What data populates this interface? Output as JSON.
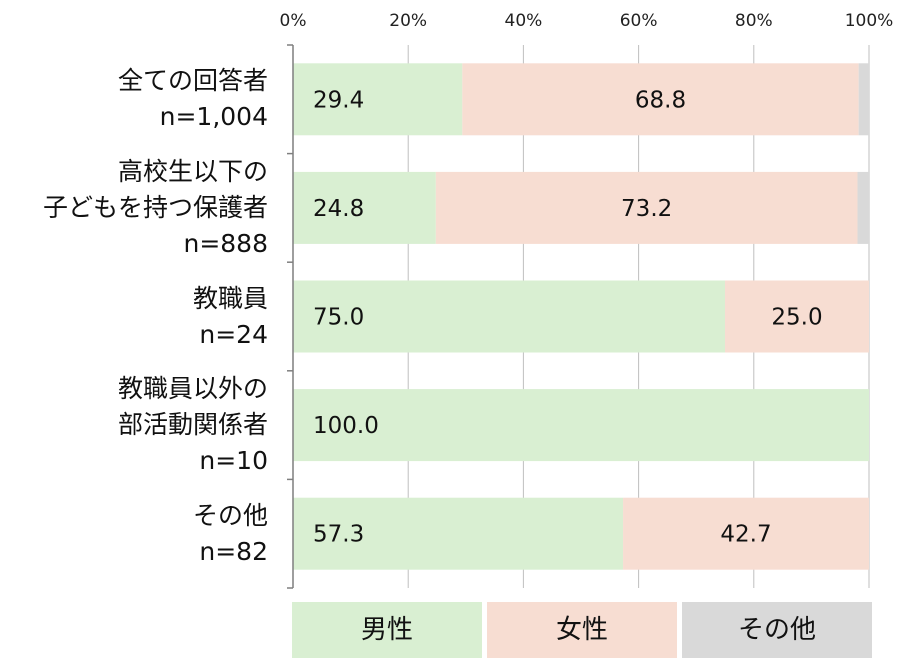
{
  "chart_data": {
    "type": "bar",
    "orientation": "horizontal",
    "stacked": "100%",
    "x_ticks": [
      "0%",
      "20%",
      "40%",
      "60%",
      "80%",
      "100%"
    ],
    "xlim": [
      0,
      100
    ],
    "categories": [
      {
        "lines": [
          "全ての回答者",
          "n=1,004"
        ]
      },
      {
        "lines": [
          "高校生以下の",
          "子どもを持つ保護者",
          "n=888"
        ]
      },
      {
        "lines": [
          "教職員",
          "n=24"
        ]
      },
      {
        "lines": [
          "教職員以外の",
          "部活動関係者",
          "n=10"
        ]
      },
      {
        "lines": [
          "その他",
          "n=82"
        ]
      }
    ],
    "series": [
      {
        "name": "男性",
        "color": "#d9efd2",
        "values": [
          29.4,
          24.8,
          75.0,
          100.0,
          57.3
        ],
        "labels": [
          "29.4",
          "24.8",
          "75.0",
          "100.0",
          "57.3"
        ]
      },
      {
        "name": "女性",
        "color": "#f7ddd2",
        "values": [
          68.8,
          73.2,
          25.0,
          0,
          42.7
        ],
        "labels": [
          "68.8",
          "73.2",
          "25.0",
          "",
          "42.7"
        ]
      },
      {
        "name": "その他",
        "color": "#d9d9d9",
        "values": [
          1.8,
          2.0,
          0,
          0,
          0
        ],
        "labels": [
          "",
          "",
          "",
          "",
          ""
        ]
      }
    ],
    "grid": true,
    "legend": {
      "position": "bottom",
      "entries": [
        "男性",
        "女性",
        "その他"
      ]
    }
  }
}
